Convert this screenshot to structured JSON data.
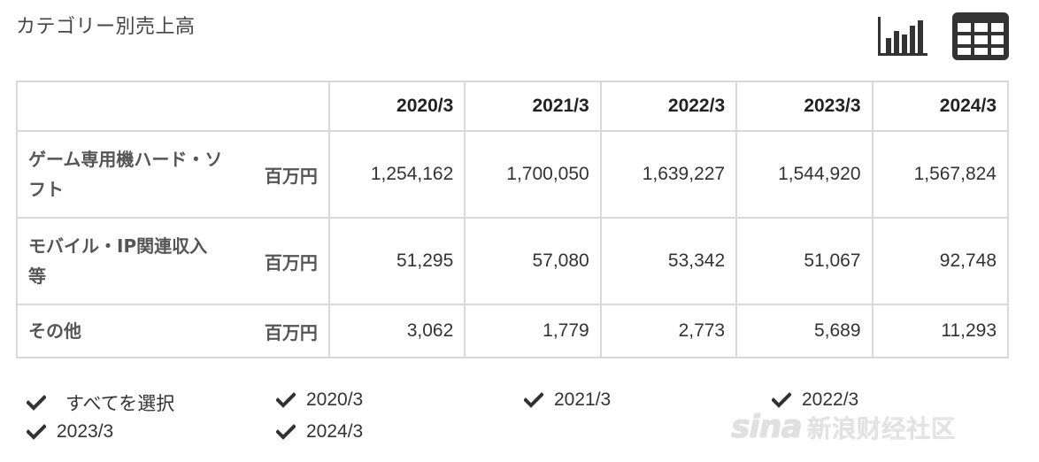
{
  "title": "カテゴリー別売上高",
  "view_buttons": {
    "chart_icon": "bar-chart-icon",
    "table_icon": "table-grid-icon"
  },
  "table": {
    "columns": [
      "2020/3",
      "2021/3",
      "2022/3",
      "2023/3",
      "2024/3"
    ],
    "rows": [
      {
        "category": "ゲーム専用機ハード・ソフト",
        "unit": "百万円",
        "values": [
          "1,254,162",
          "1,700,050",
          "1,639,227",
          "1,544,920",
          "1,567,824"
        ]
      },
      {
        "category": "モバイル・IP関連収入等",
        "unit": "百万円",
        "values": [
          "51,295",
          "57,080",
          "53,342",
          "51,067",
          "92,748"
        ]
      },
      {
        "category": "その他",
        "unit": "百万円",
        "values": [
          "3,062",
          "1,779",
          "2,773",
          "5,689",
          "11,293"
        ]
      }
    ]
  },
  "filters": [
    {
      "label": "すべてを選択",
      "checked": true
    },
    {
      "label": "2020/3",
      "checked": true
    },
    {
      "label": "2021/3",
      "checked": true
    },
    {
      "label": "2022/3",
      "checked": true
    },
    {
      "label": "2023/3",
      "checked": true
    },
    {
      "label": "2024/3",
      "checked": true
    }
  ],
  "watermark": {
    "logo": "sina",
    "text": "新浪财经社区"
  },
  "colors": {
    "grid": "#d9d9d9",
    "icon": "#333333",
    "text": "#333333"
  }
}
